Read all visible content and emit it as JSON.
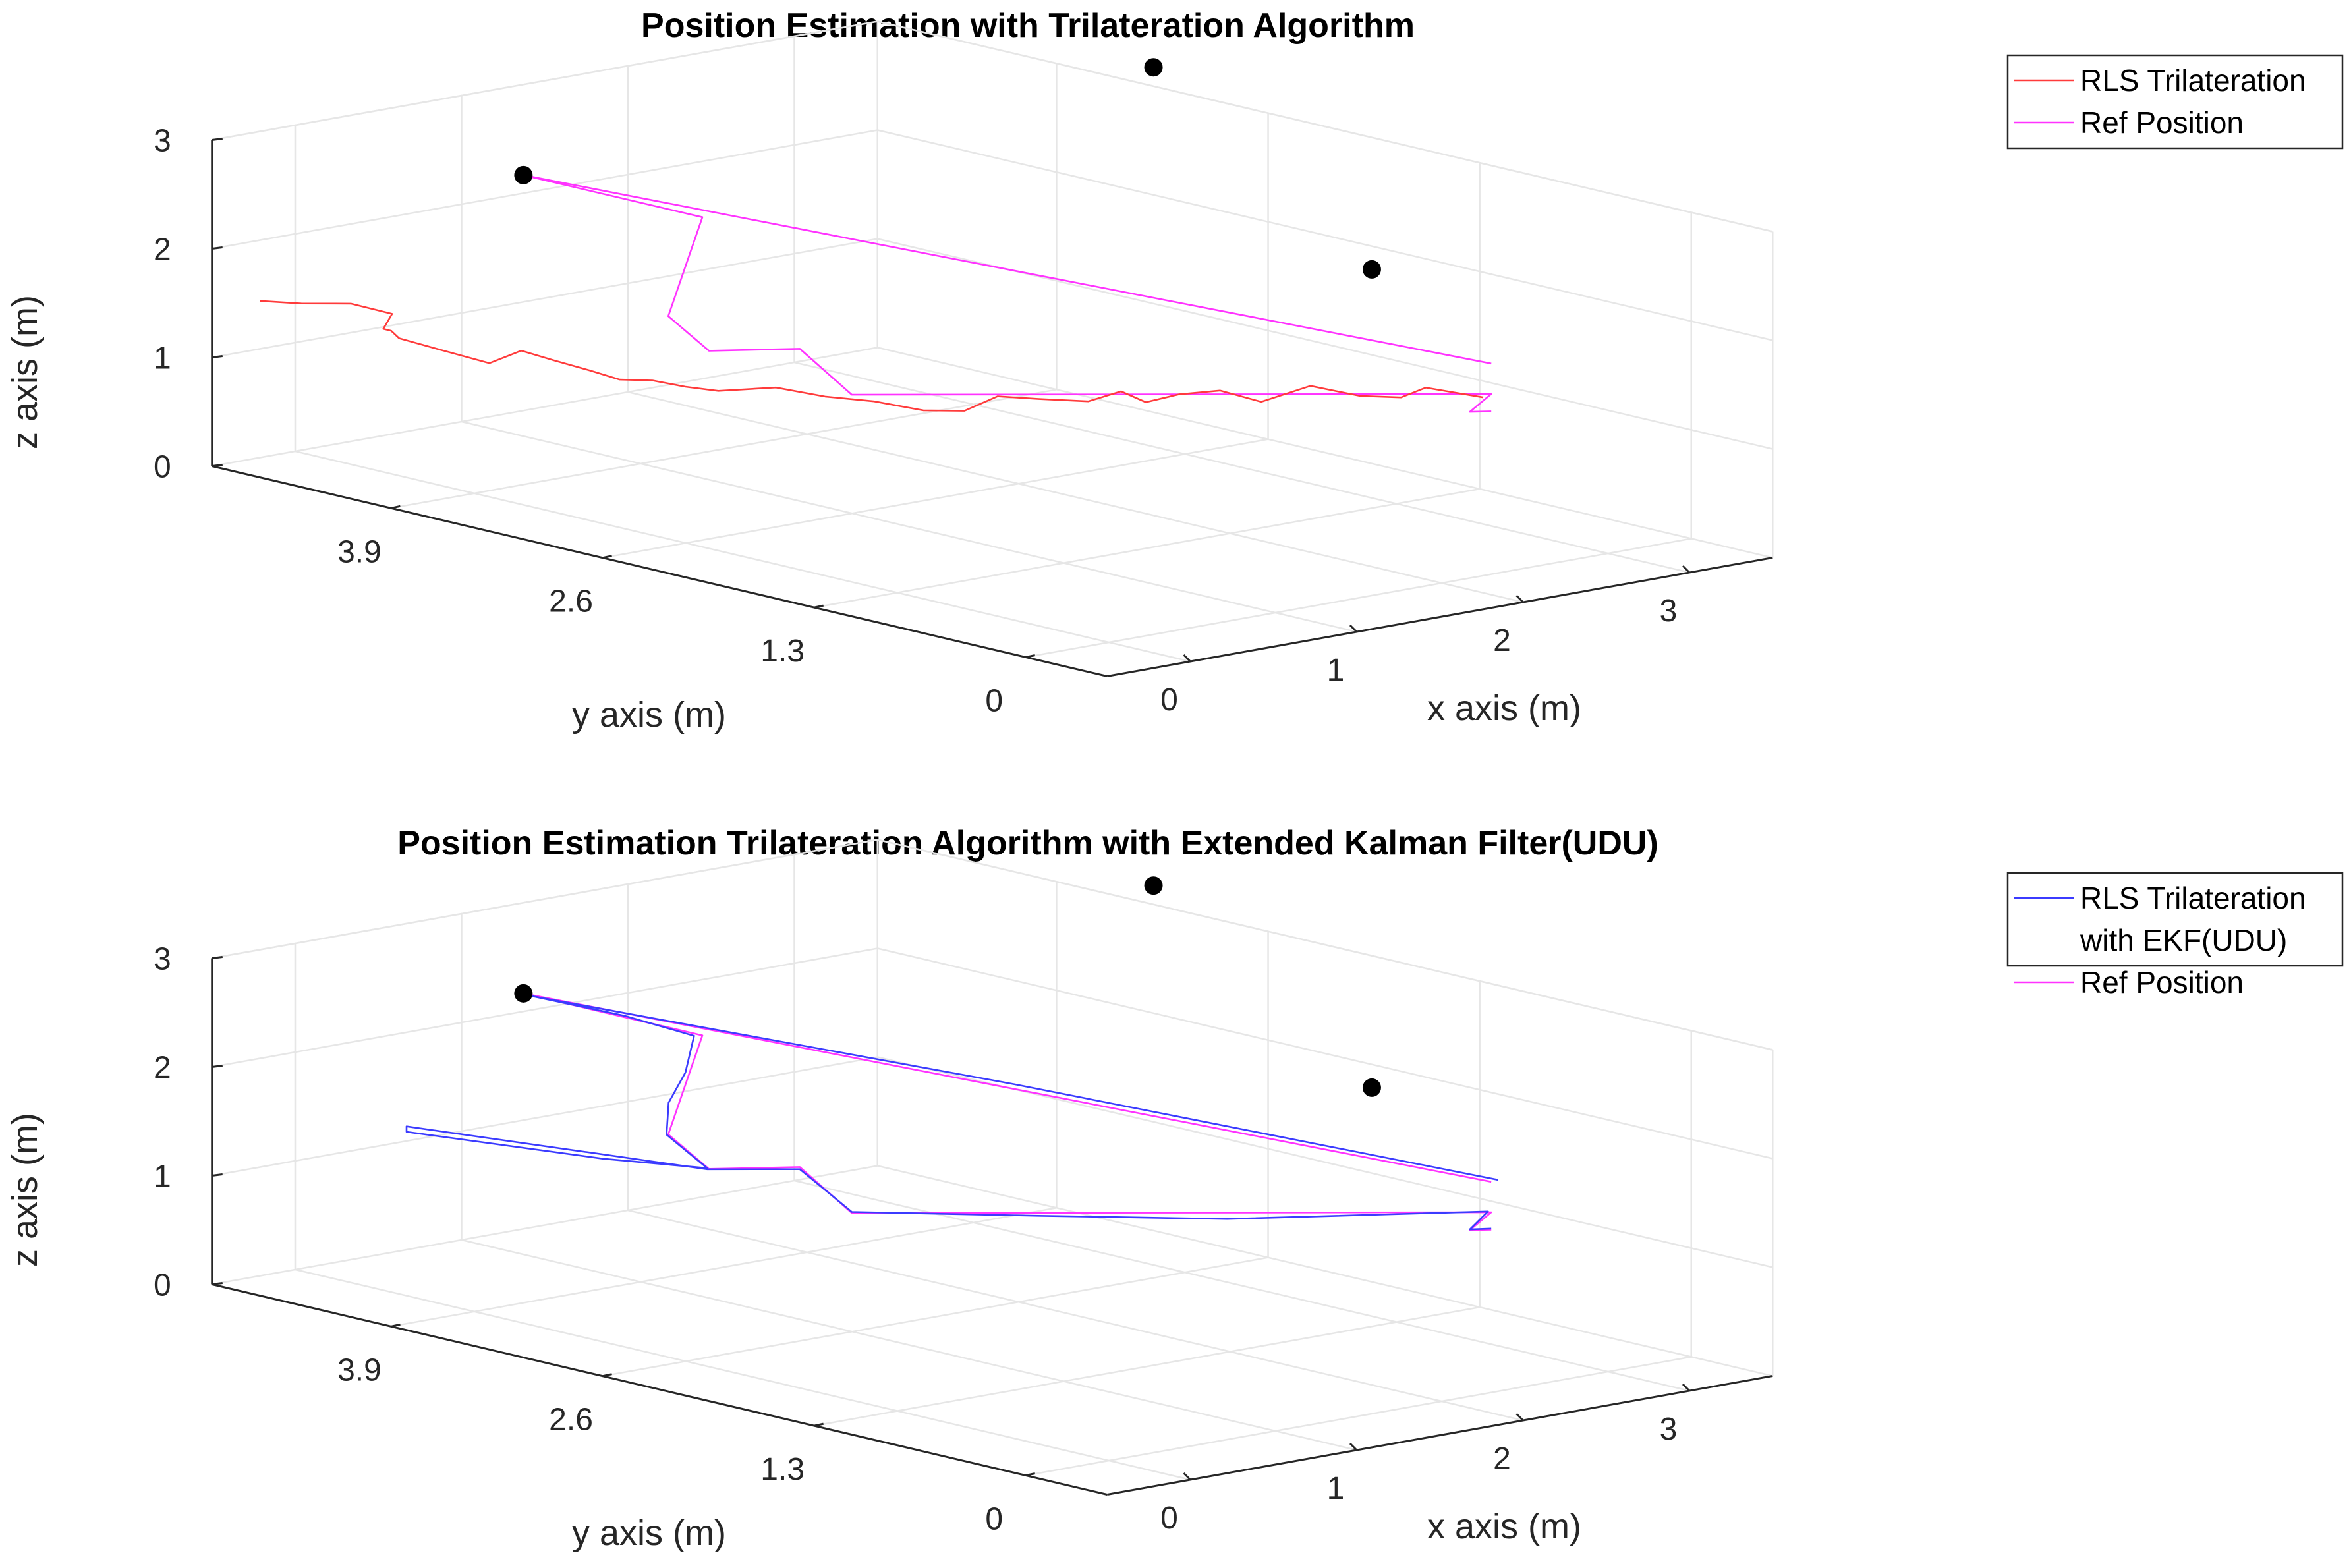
{
  "chart_data": [
    {
      "type": "line3d",
      "title": "Position Estimation with Trilateration Algorithm",
      "xlabel": "x axis (m)",
      "ylabel": "y axis (m)",
      "zlabel": "z axis (m)",
      "xlim": [
        -0.5,
        3.5
      ],
      "ylim": [
        -0.5,
        5.0
      ],
      "zlim": [
        0,
        3
      ],
      "xticks": [
        "0",
        "1",
        "2",
        "3"
      ],
      "xtick_values": [
        0,
        1,
        2,
        3
      ],
      "yticks": [
        "0",
        "1.3",
        "2.6",
        "3.9"
      ],
      "ytick_values": [
        0,
        1.3,
        2.6,
        3.9
      ],
      "zticks": [
        "0",
        "1",
        "2",
        "3"
      ],
      "ztick_values": [
        0,
        1,
        2,
        3
      ],
      "grid": true,
      "legend_position": "outside-top-right",
      "legend": [
        {
          "name": "RLS Trilateration",
          "color": "#ff3b3b"
        },
        {
          "name": "Ref Position",
          "color": "#ff33ff"
        }
      ],
      "anchors": {
        "name": "Anchor nodes",
        "color": "#000000",
        "points": [
          [
            0.1,
            3.7,
            2.97
          ],
          [
            1.58,
            0.0,
            3.0
          ],
          [
            3.3,
            3.1,
            3.3
          ]
        ]
      },
      "series": [
        {
          "name": "Ref Position",
          "color": "#ff33ff",
          "x": [
            2.2,
            0.1,
            0.1,
            -0.35,
            -0.35,
            0.02,
            0.02,
            2.2,
            2.12,
            2.2
          ],
          "y": [
            -0.1,
            3.7,
            2.6,
            2.35,
            2.1,
            1.92,
            1.6,
            -0.1,
            -0.05,
            -0.1
          ],
          "z": [
            2.0,
            2.97,
            2.97,
            2.27,
            2.04,
            2.02,
            1.71,
            1.72,
            1.56,
            1.56
          ]
        },
        {
          "name": "RLS Trilateration",
          "color": "#ff3b3b",
          "x": [
            2.25,
            2.1,
            2.0,
            1.85,
            1.7,
            1.6,
            1.45,
            1.3,
            1.2,
            1.1,
            1.0,
            0.85,
            0.7,
            0.55,
            0.4,
            0.3,
            0.25,
            0.15,
            0.0,
            -0.1,
            -0.2,
            -0.3,
            -0.38,
            -0.45,
            -0.5,
            -0.3,
            -0.4,
            -0.5,
            -0.45,
            -0.4,
            -0.2,
            -0.35,
            -0.55,
            -0.7
          ],
          "y": [
            0.0,
            0.2,
            0.25,
            0.35,
            0.5,
            0.7,
            0.8,
            0.9,
            1.0,
            1.05,
            1.15,
            1.3,
            1.4,
            1.45,
            1.55,
            1.75,
            2.0,
            2.2,
            2.4,
            2.5,
            2.6,
            2.7,
            2.8,
            2.95,
            3.1,
            3.5,
            3.7,
            3.85,
            3.95,
            4.05,
            4.2,
            4.3,
            4.4,
            4.5
          ],
          "z": [
            1.64,
            1.7,
            1.62,
            1.64,
            1.72,
            1.53,
            1.64,
            1.61,
            1.53,
            1.64,
            1.54,
            1.55,
            1.58,
            1.47,
            1.48,
            1.52,
            1.49,
            1.53,
            1.47,
            1.5,
            1.55,
            1.55,
            1.62,
            1.68,
            1.73,
            1.42,
            1.5,
            1.58,
            1.6,
            1.57,
            1.6,
            1.7,
            1.72,
            1.75
          ]
        }
      ]
    },
    {
      "type": "line3d",
      "title": "Position Estimation Trilateration Algorithm with Extended Kalman Filter(UDU)",
      "xlabel": "x axis (m)",
      "ylabel": "y axis (m)",
      "zlabel": "z axis (m)",
      "xlim": [
        -0.5,
        3.5
      ],
      "ylim": [
        -0.5,
        5.0
      ],
      "zlim": [
        0,
        3
      ],
      "xticks": [
        "0",
        "1",
        "2",
        "3"
      ],
      "xtick_values": [
        0,
        1,
        2,
        3
      ],
      "yticks": [
        "0",
        "1.3",
        "2.6",
        "3.9"
      ],
      "ytick_values": [
        0,
        1.3,
        2.6,
        3.9
      ],
      "zticks": [
        "0",
        "1",
        "2",
        "3"
      ],
      "ztick_values": [
        0,
        1,
        2,
        3
      ],
      "grid": true,
      "legend_position": "outside-top-right",
      "legend": [
        {
          "name": "RLS Trilateration with EKF(UDU)",
          "lines": [
            "RLS Trilateration",
            "with EKF(UDU)"
          ],
          "color": "#3b3bff"
        },
        {
          "name": "Ref Position",
          "color": "#ff33ff"
        }
      ],
      "anchors": {
        "name": "Anchor nodes",
        "color": "#000000",
        "points": [
          [
            0.1,
            3.7,
            2.97
          ],
          [
            1.58,
            0.0,
            3.0
          ],
          [
            3.3,
            3.1,
            3.3
          ]
        ]
      },
      "series": [
        {
          "name": "Ref Position",
          "color": "#ff33ff",
          "x": [
            2.2,
            0.1,
            0.1,
            -0.35,
            -0.35,
            0.02,
            0.02,
            2.2,
            2.12,
            2.2
          ],
          "y": [
            -0.1,
            3.7,
            2.6,
            2.35,
            2.1,
            1.92,
            1.6,
            -0.1,
            -0.05,
            -0.1
          ],
          "z": [
            2.0,
            2.97,
            2.97,
            2.27,
            2.04,
            2.02,
            1.71,
            1.72,
            1.56,
            1.56
          ]
        },
        {
          "name": "RLS Trilateration with EKF(UDU)",
          "color": "#3b3bff",
          "x": [
            2.22,
            1.2,
            0.12,
            0.12,
            0.05,
            -0.1,
            -0.25,
            -0.36,
            -0.36,
            -0.5,
            -0.7,
            -0.7,
            -0.36,
            0.02,
            0.02,
            0.6,
            1.2,
            2.2,
            2.13,
            2.2
          ],
          "y": [
            -0.12,
            1.8,
            3.68,
            3.1,
            2.6,
            2.5,
            2.45,
            2.35,
            2.1,
            2.6,
            3.6,
            3.6,
            2.1,
            1.92,
            1.6,
            1.05,
            0.5,
            -0.08,
            -0.04,
            -0.1
          ],
          "z": [
            2.02,
            2.5,
            2.95,
            2.97,
            2.98,
            2.72,
            2.5,
            2.27,
            2.05,
            2.0,
            1.95,
            2.0,
            2.04,
            2.0,
            1.72,
            1.72,
            1.72,
            1.72,
            1.56,
            1.57
          ]
        }
      ]
    }
  ]
}
